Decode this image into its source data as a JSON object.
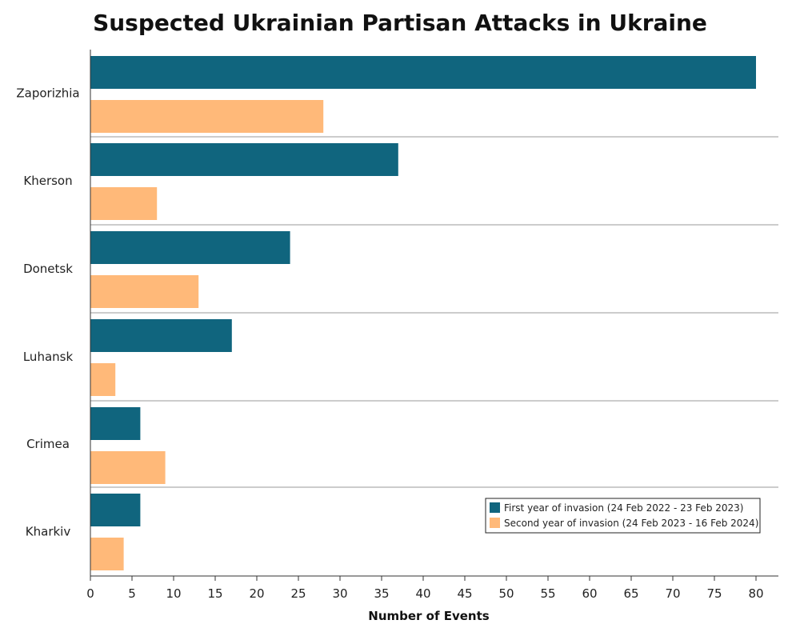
{
  "chart_data": {
    "type": "bar",
    "orientation": "horizontal",
    "title": "Suspected Ukrainian Partisan Attacks in Ukraine",
    "xlabel": "Number of Events",
    "ylabel": "",
    "categories": [
      "Zaporizhia",
      "Kherson",
      "Donetsk",
      "Luhansk",
      "Crimea",
      "Kharkiv"
    ],
    "series": [
      {
        "name": "First year of invasion (24 Feb 2022 - 23 Feb 2023)",
        "color": "#10657e",
        "values": [
          80,
          37,
          24,
          17,
          6,
          6
        ]
      },
      {
        "name": "Second year of invasion (24 Feb 2023 - 16 Feb 2024)",
        "color": "#ffb979",
        "values": [
          28,
          8,
          13,
          3,
          9,
          4
        ]
      }
    ],
    "xlim": [
      0,
      80
    ],
    "xticks": [
      0,
      5,
      10,
      15,
      20,
      25,
      30,
      35,
      40,
      45,
      50,
      55,
      60,
      65,
      70,
      75,
      80
    ],
    "grid": false,
    "legend_position": "bottom-right"
  }
}
